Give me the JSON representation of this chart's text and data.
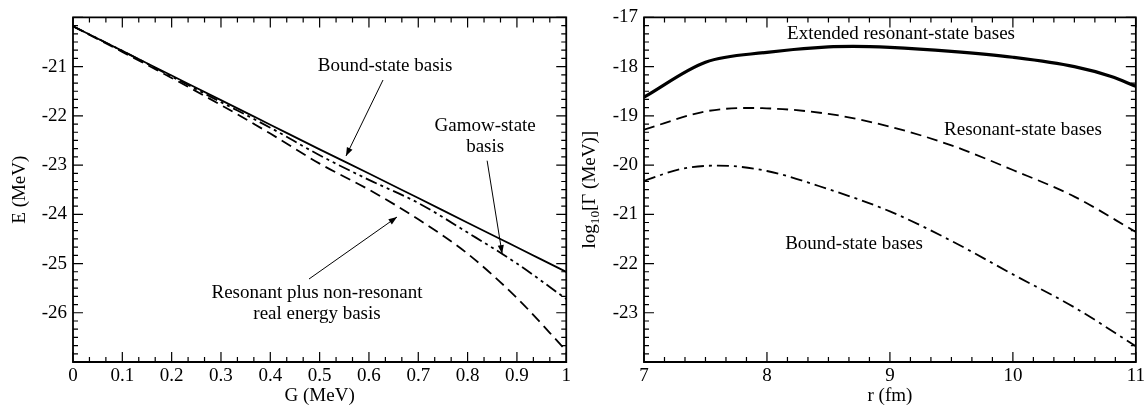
{
  "chart_data": [
    {
      "type": "line",
      "xlabel": "G (MeV)",
      "ylabel": "E (MeV)",
      "xlim": [
        0,
        1
      ],
      "xticks": [
        0,
        0.1,
        0.2,
        0.3,
        0.4,
        0.5,
        0.6,
        0.7,
        0.8,
        0.9,
        1
      ],
      "ylim": [
        -27,
        -20
      ],
      "yticks": [
        -21,
        -22,
        -23,
        -24,
        -25,
        -26
      ],
      "grid": false,
      "legend": false,
      "x": [
        0,
        0.1,
        0.2,
        0.3,
        0.4,
        0.5,
        0.6,
        0.7,
        0.8,
        0.9,
        1
      ],
      "series": [
        {
          "color": "#000000",
          "line_style": "solid",
          "values": [
            -20.18,
            -20.68,
            -21.18,
            -21.68,
            -22.18,
            -22.68,
            -23.17,
            -23.67,
            -24.17,
            -24.67,
            -25.17
          ]
        },
        {
          "color": "#000000",
          "line_style": "dashdotdot",
          "values": [
            -20.18,
            -20.68,
            -21.2,
            -21.72,
            -22.24,
            -22.8,
            -23.3,
            -23.77,
            -24.37,
            -25.0,
            -25.72
          ]
        },
        {
          "color": "#000000",
          "line_style": "dashed",
          "values": [
            -20.18,
            -20.7,
            -21.23,
            -21.78,
            -22.36,
            -22.97,
            -23.5,
            -24.1,
            -24.8,
            -25.7,
            -26.77
          ]
        }
      ],
      "annotations": [
        "Bound-state basis",
        {
          "text": "Gamow-state\nbasis",
          "x": 0.87,
          "y": -24.8
        },
        "Resonant plus non-resonant\nreal energy basis"
      ]
    },
    {
      "type": "line",
      "xlabel": "r (fm)",
      "ylabel": "log$_{10}$[Γ (MeV)]",
      "xlim": [
        7,
        11
      ],
      "xticks": [
        7,
        8,
        9,
        10,
        11
      ],
      "ylim": [
        -24,
        -17
      ],
      "yticks": [
        -17,
        -18,
        -19,
        -20,
        -21,
        -22,
        -23
      ],
      "grid": false,
      "legend": false,
      "series": [
        {
          "color": "#000000",
          "line_style": "solid",
          "x": [
            7,
            7.5,
            8,
            8.5,
            8.7,
            9,
            9.5,
            10,
            10.5,
            10.8,
            11
          ],
          "values": [
            -18.62,
            -17.91,
            -17.71,
            -17.6,
            -17.59,
            -17.61,
            -17.69,
            -17.81,
            -18.0,
            -18.2,
            -18.4
          ]
        },
        {
          "color": "#000000",
          "line_style": "dashed",
          "x": [
            7,
            7.5,
            7.85,
            8.5,
            9,
            9.5,
            10,
            10.5,
            11
          ],
          "values": [
            -19.28,
            -18.91,
            -18.84,
            -18.96,
            -19.22,
            -19.6,
            -20.1,
            -20.64,
            -21.36
          ]
        },
        {
          "color": "#000000",
          "line_style": "dashdot",
          "x": [
            7,
            7.3,
            7.6,
            8,
            8.5,
            9,
            9.5,
            10,
            10.5,
            11
          ],
          "values": [
            -20.32,
            -20.08,
            -20.01,
            -20.12,
            -20.49,
            -20.94,
            -21.54,
            -22.22,
            -22.89,
            -23.68
          ]
        }
      ],
      "annotations": [
        "Extended resonant-state bases",
        "Resonant-state bases",
        "Bound-state bases"
      ]
    }
  ]
}
